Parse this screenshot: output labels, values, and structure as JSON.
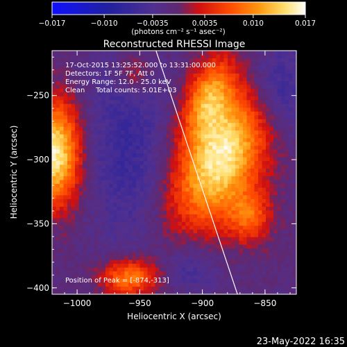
{
  "footer_timestamp": "23-May-2022 16:35",
  "chart_data": {
    "type": "heatmap",
    "title": "Reconstructed RHESSI Image",
    "xlabel": "Heliocentric X (arcsec)",
    "ylabel": "Heliocentric Y (arcsec)",
    "xlim": [
      -1020,
      -825
    ],
    "ylim": [
      -405,
      -215
    ],
    "x_ticks": [
      -1000,
      -950,
      -900,
      -850
    ],
    "y_ticks": [
      -250,
      -300,
      -350,
      -400
    ],
    "x_tick_labels": [
      "−1000",
      "−950",
      "−900",
      "−850"
    ],
    "y_tick_labels": [
      "−250",
      "−300",
      "−350",
      "−400"
    ],
    "colorbar": {
      "range": [
        -0.017,
        0.017
      ],
      "tick_values": [
        -0.017,
        -0.01,
        -0.0035,
        0.0035,
        0.01,
        0.017
      ],
      "tick_labels": [
        "−0.017",
        "−0.010",
        "−0.0035",
        "0.0035",
        "0.010",
        "0.017"
      ],
      "unit_label": "(photons cm⁻² s⁻¹ asec⁻²)",
      "colors": [
        "#1a1aff",
        "#2a1a8c",
        "#4d2a9e",
        "#6a2a7a",
        "#ff2a00",
        "#ff8c00",
        "#ffd24d",
        "#ffffe0"
      ]
    },
    "annotations": [
      "17-Oct-2015 13:25:52.000 to 13:31:00.000",
      "Detectors: 1F 5F 7F, Att 0",
      "Energy Range: 12.0 - 25.0 keV",
      "Clean     Total counts: 5.01E+03"
    ],
    "peak_label": "Position of Peak = [-874,-313]",
    "peak": [
      -874,
      -313
    ],
    "limb_line": [
      [
        -937,
        -215
      ],
      [
        -872,
        -405
      ]
    ],
    "sources": [
      {
        "x": -885,
        "y": -298,
        "sx": 22,
        "sy": 40,
        "amp": 0.017,
        "angle": -25
      },
      {
        "x": -895,
        "y": -250,
        "sx": 12,
        "sy": 22,
        "amp": 0.01,
        "angle": -20
      },
      {
        "x": -862,
        "y": -345,
        "sx": 12,
        "sy": 14,
        "amp": 0.008,
        "angle": 0
      },
      {
        "x": -1018,
        "y": -295,
        "sx": 14,
        "sy": 28,
        "amp": 0.017,
        "angle": 0
      },
      {
        "x": -958,
        "y": -392,
        "sx": 16,
        "sy": 10,
        "amp": 0.011,
        "angle": 0
      },
      {
        "x": -955,
        "y": -232,
        "sx": 10,
        "sy": 12,
        "amp": 0.005,
        "angle": 0
      }
    ],
    "negative_regions": [
      {
        "x": -960,
        "y": -290,
        "sx": 22,
        "sy": 55,
        "amp": -0.005
      },
      {
        "x": -840,
        "y": -245,
        "sx": 18,
        "sy": 25,
        "amp": -0.006
      },
      {
        "x": -910,
        "y": -385,
        "sx": 15,
        "sy": 15,
        "amp": -0.004
      }
    ]
  }
}
